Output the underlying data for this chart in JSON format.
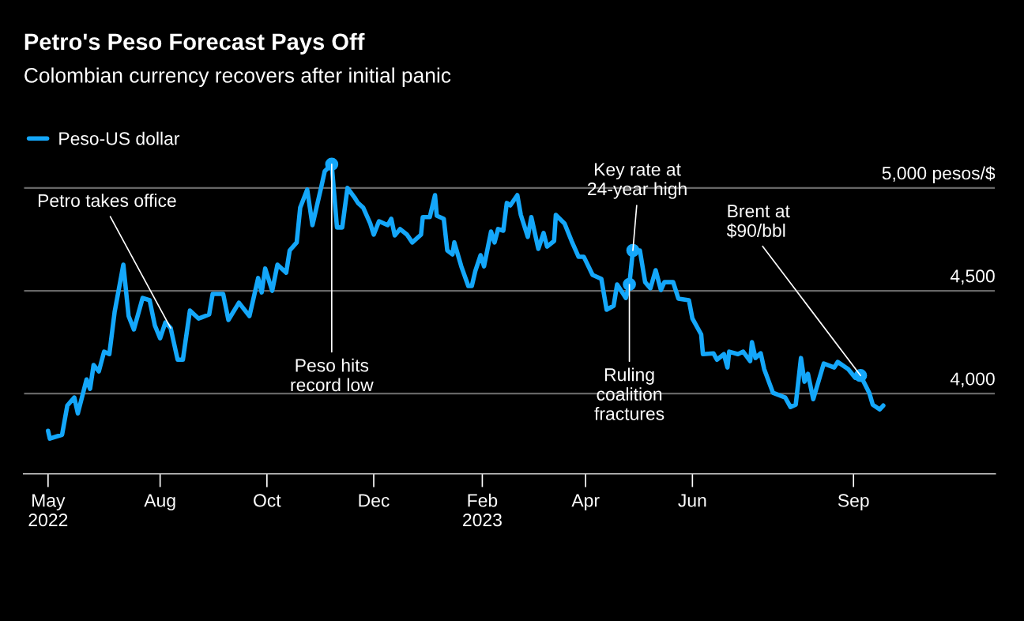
{
  "chart_data": {
    "type": "line",
    "title": "Petro's Peso Forecast Pays Off",
    "subtitle": "Colombian currency recovers after initial panic",
    "x": [
      "2022-05-29",
      "2022-05-30",
      "2022-06-06",
      "2022-06-09",
      "2022-06-13",
      "2022-06-15",
      "2022-06-20",
      "2022-06-22",
      "2022-06-24",
      "2022-06-27",
      "2022-06-30",
      "2022-07-03",
      "2022-07-06",
      "2022-07-11",
      "2022-07-14",
      "2022-07-17",
      "2022-07-22",
      "2022-07-26",
      "2022-07-29",
      "2022-08-01",
      "2022-08-04",
      "2022-08-07",
      "2022-08-11",
      "2022-08-14",
      "2022-08-18",
      "2022-08-23",
      "2022-08-29",
      "2022-08-31",
      "2022-09-06",
      "2022-09-09",
      "2022-09-15",
      "2022-09-21",
      "2022-09-26",
      "2022-09-28",
      "2022-09-30",
      "2022-10-04",
      "2022-10-07",
      "2022-10-12",
      "2022-10-14",
      "2022-10-18",
      "2022-10-20",
      "2022-10-24",
      "2022-10-27",
      "2022-11-01",
      "2022-11-03",
      "2022-11-07",
      "2022-11-10",
      "2022-11-13",
      "2022-11-16",
      "2022-11-20",
      "2022-11-22",
      "2022-11-25",
      "2022-11-29",
      "2022-12-01",
      "2022-12-04",
      "2022-12-09",
      "2022-12-11",
      "2022-12-13",
      "2022-12-16",
      "2022-12-20",
      "2022-12-23",
      "2022-12-28",
      "2022-12-29",
      "2023-01-02",
      "2023-01-05",
      "2023-01-06",
      "2023-01-10",
      "2023-01-12",
      "2023-01-15",
      "2023-01-16",
      "2023-01-20",
      "2023-01-24",
      "2023-01-26",
      "2023-01-28",
      "2023-01-31",
      "2023-02-02",
      "2023-02-06",
      "2023-02-08",
      "2023-02-10",
      "2023-02-13",
      "2023-02-15",
      "2023-02-17",
      "2023-02-21",
      "2023-02-23",
      "2023-02-27",
      "2023-03-01",
      "2023-03-05",
      "2023-03-08",
      "2023-03-10",
      "2023-03-14",
      "2023-03-15",
      "2023-03-20",
      "2023-03-24",
      "2023-03-28",
      "2023-03-31",
      "2023-04-05",
      "2023-04-10",
      "2023-04-13",
      "2023-04-17",
      "2023-04-19",
      "2023-04-24",
      "2023-04-26",
      "2023-04-28",
      "2023-05-02",
      "2023-05-05",
      "2023-05-08",
      "2023-05-11",
      "2023-05-14",
      "2023-05-16",
      "2023-05-21",
      "2023-05-24",
      "2023-05-30",
      "2023-06-01",
      "2023-06-06",
      "2023-06-07",
      "2023-06-13",
      "2023-06-15",
      "2023-06-19",
      "2023-06-21",
      "2023-06-22",
      "2023-06-27",
      "2023-06-30",
      "2023-07-04",
      "2023-07-05",
      "2023-07-07",
      "2023-07-10",
      "2023-07-12",
      "2023-07-17",
      "2023-07-24",
      "2023-07-27",
      "2023-07-30",
      "2023-08-02",
      "2023-08-04",
      "2023-08-06",
      "2023-08-09",
      "2023-08-15",
      "2023-08-21",
      "2023-08-23",
      "2023-08-29",
      "2023-09-02",
      "2023-09-05",
      "2023-09-10",
      "2023-09-12",
      "2023-09-16",
      "2023-09-18"
    ],
    "series": [
      {
        "name": "Peso-US dollar",
        "color": "#14a7fa",
        "values": [
          3819,
          3781,
          3800,
          3942,
          3981,
          3904,
          4069,
          4023,
          4139,
          4108,
          4204,
          4192,
          4396,
          4627,
          4377,
          4312,
          4465,
          4454,
          4331,
          4269,
          4346,
          4319,
          4165,
          4165,
          4404,
          4365,
          4385,
          4485,
          4485,
          4358,
          4442,
          4377,
          4562,
          4492,
          4608,
          4500,
          4627,
          4588,
          4696,
          4735,
          4904,
          4992,
          4819,
          5004,
          5081,
          5115,
          4808,
          4808,
          5000,
          4954,
          4927,
          4904,
          4827,
          4773,
          4838,
          4819,
          4850,
          4769,
          4800,
          4773,
          4735,
          4773,
          4858,
          4858,
          4965,
          4865,
          4850,
          4696,
          4677,
          4735,
          4619,
          4523,
          4523,
          4596,
          4673,
          4619,
          4788,
          4735,
          4800,
          4792,
          4927,
          4915,
          4965,
          4869,
          4762,
          4858,
          4704,
          4781,
          4715,
          4742,
          4869,
          4827,
          4742,
          4665,
          4665,
          4577,
          4558,
          4408,
          4427,
          4531,
          4465,
          4531,
          4696,
          4696,
          4542,
          4512,
          4600,
          4504,
          4542,
          4542,
          4462,
          4454,
          4365,
          4288,
          4192,
          4196,
          4165,
          4192,
          4127,
          4204,
          4192,
          4204,
          4158,
          4250,
          4173,
          4196,
          4119,
          4004,
          3981,
          3935,
          3946,
          4173,
          4058,
          4096,
          3973,
          4146,
          4127,
          4154,
          4119,
          4077,
          4088,
          4004,
          3946,
          3923,
          3942
        ]
      }
    ],
    "xlim": [
      "2022-05-15",
      "2023-11-21"
    ],
    "xticks": [
      {
        "value": "2022-05-29",
        "label": "May\n2022"
      },
      {
        "value": "2022-08-01",
        "label": "Aug"
      },
      {
        "value": "2022-10-01",
        "label": "Oct"
      },
      {
        "value": "2022-12-01",
        "label": "Dec"
      },
      {
        "value": "2023-02-01",
        "label": "Feb\n2023"
      },
      {
        "value": "2023-04-01",
        "label": "Apr"
      },
      {
        "value": "2023-06-01",
        "label": "Jun"
      },
      {
        "value": "2023-09-01",
        "label": "Sep"
      }
    ],
    "ylim": [
      3610,
      5165
    ],
    "yticks": [
      {
        "value": 4000,
        "label": "4,000"
      },
      {
        "value": 4500,
        "label": "4,500"
      },
      {
        "value": 5000,
        "label": "5,000 pesos/$"
      }
    ],
    "grid": "y",
    "legend": "top left",
    "annotations": [
      {
        "text": "Petro takes office",
        "x": "2022-08-07",
        "y": 4319
      },
      {
        "text": "Peso hits\nrecord low",
        "x": "2022-11-07",
        "y": 5115
      },
      {
        "text": "Key rate at\n24-year high",
        "x": "2023-04-28",
        "y": 4696
      },
      {
        "text": "Ruling\ncoalition\nfractures",
        "x": "2023-04-26",
        "y": 4531
      },
      {
        "text": "Brent at\n$90/bbl",
        "x": "2023-09-05",
        "y": 4088
      }
    ]
  }
}
